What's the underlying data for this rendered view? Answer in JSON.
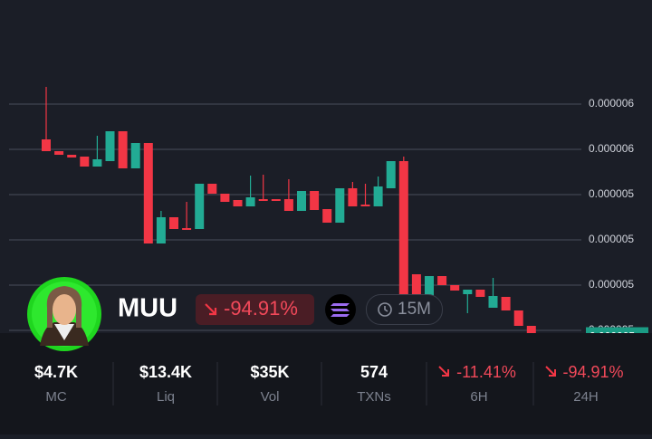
{
  "chart_data": {
    "type": "candlestick",
    "ylim": [
      4.696e-06,
      6.068e-06
    ],
    "yticks": [
      {
        "value": 5.8e-06,
        "label": "0.000006"
      },
      {
        "value": 5.6e-06,
        "label": "0.000006"
      },
      {
        "value": 5.4e-06,
        "label": "0.000005"
      },
      {
        "value": 5.2e-06,
        "label": "0.000005"
      },
      {
        "value": 5e-06,
        "label": "0.000005"
      },
      {
        "value": 4.8e-06,
        "label": "0.000005"
      }
    ],
    "grid": true,
    "up_color": "#22ab94",
    "down_color": "#f23645",
    "current_price": {
      "value": 4.77e-06,
      "label": "0.000005"
    },
    "open": [
      5.644e-06,
      5.592e-06,
      5.576e-06,
      5.568e-06,
      5.524e-06,
      5.548e-06,
      5.68e-06,
      5.516e-06,
      5.628e-06,
      5.184e-06,
      5.3e-06,
      5.252e-06,
      5.248e-06,
      5.448e-06,
      5.404e-06,
      5.376e-06,
      5.348e-06,
      5.38e-06,
      5.38e-06,
      5.38e-06,
      5.328e-06,
      5.416e-06,
      5.336e-06,
      5.276e-06,
      5.428e-06,
      5.356e-06,
      5.348e-06,
      5.428e-06,
      5.548e-06,
      5.048e-06,
      4.944e-06,
      5.04e-06,
      5e-06,
      4.96e-06,
      4.98e-06,
      4.9e-06,
      4.948e-06,
      4.888e-06,
      4.82e-06,
      4.764e-06
    ],
    "high": [
      5.876e-06,
      5.592e-06,
      5.576e-06,
      5.568e-06,
      5.66e-06,
      5.68e-06,
      5.68e-06,
      5.628e-06,
      5.628e-06,
      5.328e-06,
      5.3e-06,
      5.368e-06,
      5.448e-06,
      5.448e-06,
      5.404e-06,
      5.376e-06,
      5.484e-06,
      5.488e-06,
      5.38e-06,
      5.468e-06,
      5.416e-06,
      5.416e-06,
      5.336e-06,
      5.428e-06,
      5.456e-06,
      5.448e-06,
      5.48e-06,
      5.548e-06,
      5.568e-06,
      5.048e-06,
      5.04e-06,
      5.04e-06,
      5e-06,
      4.98e-06,
      4.98e-06,
      5.032e-06,
      4.948e-06,
      4.888e-06,
      4.82e-06,
      4.764e-06
    ],
    "low": [
      5.592e-06,
      5.576e-06,
      5.564e-06,
      5.524e-06,
      5.524e-06,
      5.548e-06,
      5.516e-06,
      5.516e-06,
      5.184e-06,
      5.184e-06,
      5.248e-06,
      5.244e-06,
      5.248e-06,
      5.404e-06,
      5.368e-06,
      5.348e-06,
      5.348e-06,
      5.372e-06,
      5.372e-06,
      5.328e-06,
      5.328e-06,
      5.332e-06,
      5.276e-06,
      5.276e-06,
      5.348e-06,
      5.348e-06,
      5.348e-06,
      5.428e-06,
      4.948e-06,
      4.944e-06,
      4.944e-06,
      5e-06,
      4.976e-06,
      4.876e-06,
      4.948e-06,
      4.9e-06,
      4.888e-06,
      4.82e-06,
      4.764e-06,
      4.76e-06
    ],
    "close": [
      5.592e-06,
      5.576e-06,
      5.564e-06,
      5.524e-06,
      5.556e-06,
      5.68e-06,
      5.516e-06,
      5.628e-06,
      5.184e-06,
      5.3e-06,
      5.248e-06,
      5.244e-06,
      5.448e-06,
      5.404e-06,
      5.368e-06,
      5.348e-06,
      5.388e-06,
      5.372e-06,
      5.372e-06,
      5.328e-06,
      5.416e-06,
      5.332e-06,
      5.276e-06,
      5.428e-06,
      5.348e-06,
      5.348e-06,
      5.436e-06,
      5.548e-06,
      4.948e-06,
      4.944e-06,
      5.04e-06,
      5e-06,
      4.976e-06,
      4.98e-06,
      4.948e-06,
      4.952e-06,
      4.888e-06,
      4.82e-06,
      4.764e-06,
      4.76e-06
    ]
  },
  "token": {
    "symbol": "MUU",
    "change": "-94.91%",
    "timeframe": "15M"
  },
  "stats": [
    {
      "value": "$4.7K",
      "label": "MC"
    },
    {
      "value": "$13.4K",
      "label": "Liq"
    },
    {
      "value": "$35K",
      "label": "Vol"
    },
    {
      "value": "574",
      "label": "TXNs"
    },
    {
      "value": "-11.41%",
      "label": "6H"
    },
    {
      "value": "-94.91%",
      "label": "24H"
    }
  ]
}
